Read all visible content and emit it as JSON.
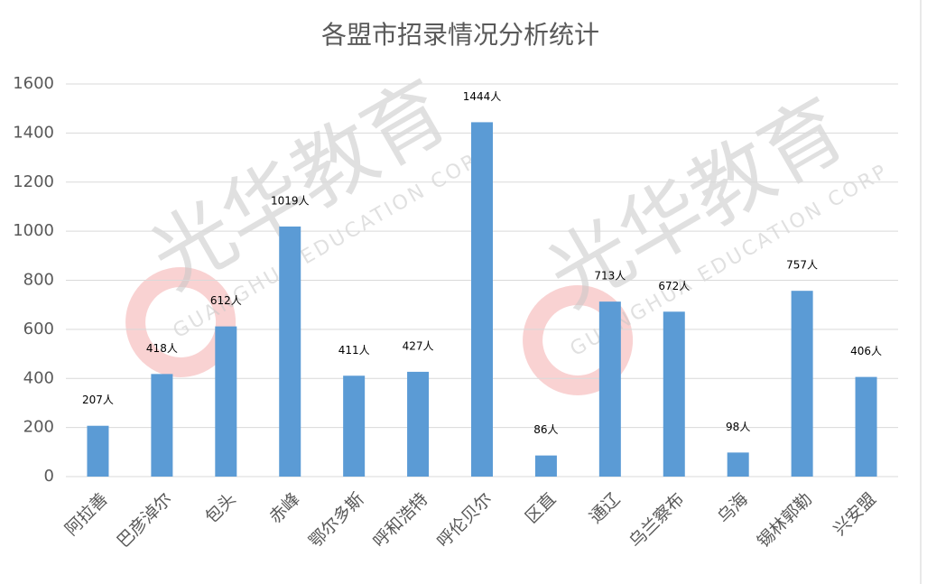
{
  "chart_data": {
    "type": "bar",
    "title": "各盟市招录情况分析统计",
    "categories": [
      "阿拉善",
      "巴彦淖尔",
      "包头",
      "赤峰",
      "鄂尔多斯",
      "呼和浩特",
      "呼伦贝尔",
      "区直",
      "通辽",
      "乌兰察布",
      "乌海",
      "锡林郭勒",
      "兴安盟"
    ],
    "values": [
      207,
      418,
      612,
      1019,
      411,
      427,
      1444,
      86,
      713,
      672,
      98,
      757,
      406
    ],
    "value_labels": [
      "207人",
      "418人",
      "612人",
      "1019人",
      "411人",
      "427人",
      "1444人",
      "86人",
      "713人",
      "672人",
      "98人",
      "757人",
      "406人"
    ],
    "color": "#5b9bd5",
    "ylim": [
      0,
      1600
    ],
    "yticks": [
      0,
      200,
      400,
      600,
      800,
      1000,
      1200,
      1400,
      1600
    ],
    "grid": true,
    "watermark": {
      "title": "光华教育",
      "subtitle": "GUANGHUA EDUCATION CORP"
    }
  }
}
